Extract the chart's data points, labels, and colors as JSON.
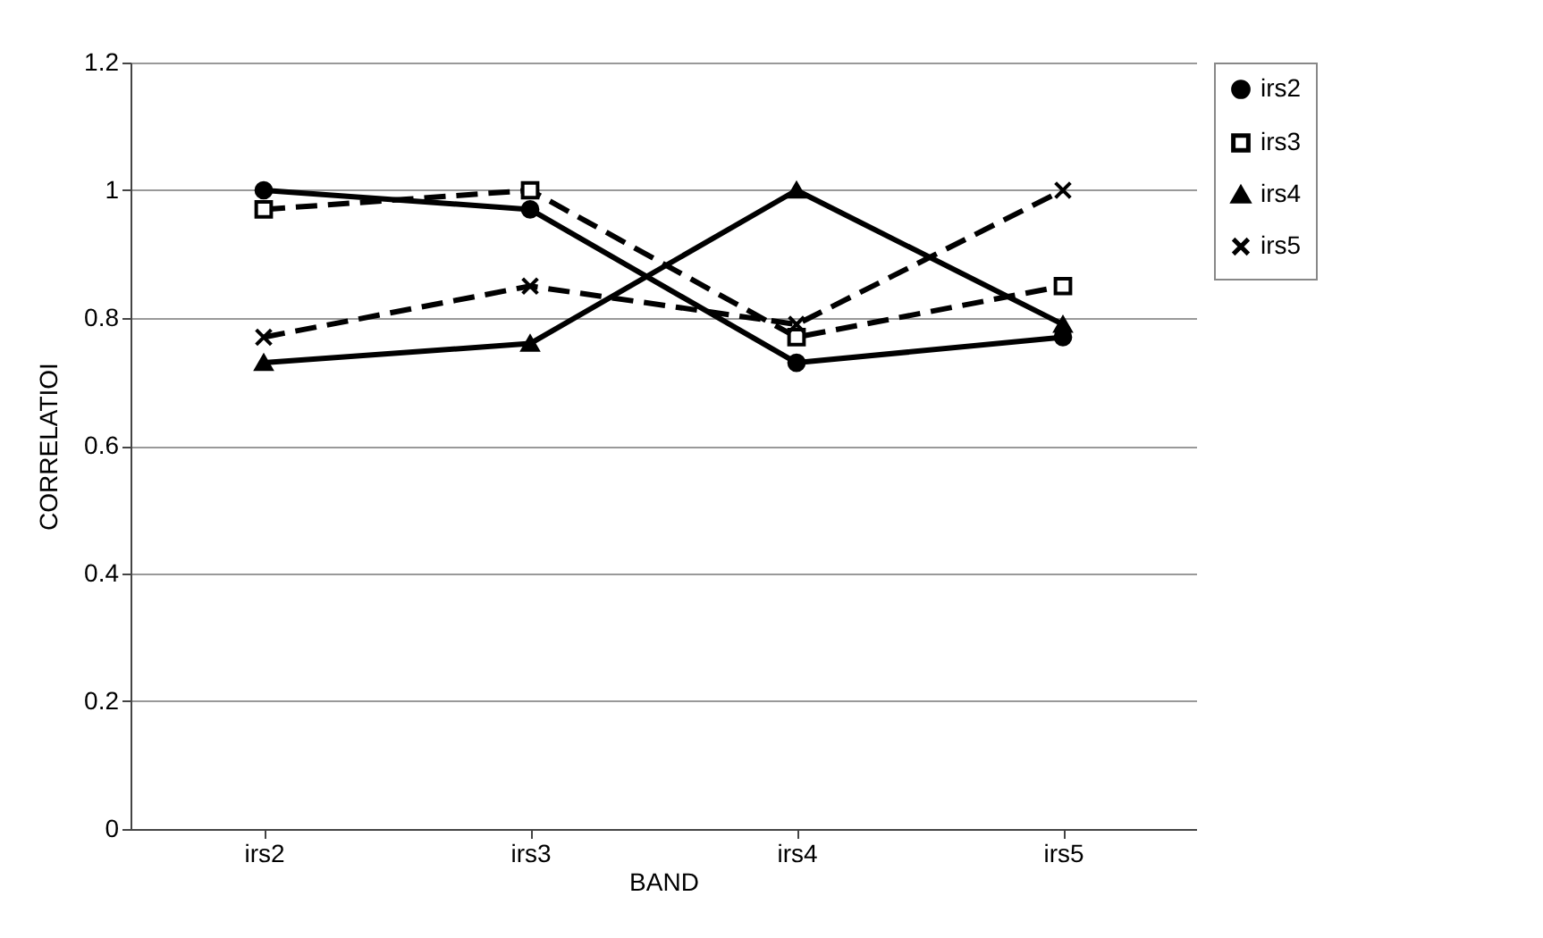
{
  "chart_data": {
    "type": "line",
    "xlabel": "BAND",
    "ylabel": "CORRELATIOI",
    "categories": [
      "irs2",
      "irs3",
      "irs4",
      "irs5"
    ],
    "series": [
      {
        "name": "irs2",
        "color": "#000000",
        "marker": "circle",
        "line_style": "solid",
        "values": [
          1.0,
          0.97,
          0.73,
          0.77
        ]
      },
      {
        "name": "irs3",
        "color": "#000000",
        "marker": "square",
        "line_style": "dashed",
        "values": [
          0.97,
          1.0,
          0.77,
          0.85
        ]
      },
      {
        "name": "irs4",
        "color": "#000000",
        "marker": "triangle",
        "line_style": "solid",
        "values": [
          0.73,
          0.76,
          1.0,
          0.79
        ]
      },
      {
        "name": "irs5",
        "color": "#000000",
        "marker": "cross",
        "line_style": "dashed",
        "values": [
          0.77,
          0.85,
          0.79,
          1.0
        ]
      }
    ],
    "ylim": [
      0,
      1.2
    ],
    "yticks": [
      0,
      0.2,
      0.4,
      0.6,
      0.8,
      1,
      1.2
    ],
    "grid": "y",
    "legend": "right"
  }
}
